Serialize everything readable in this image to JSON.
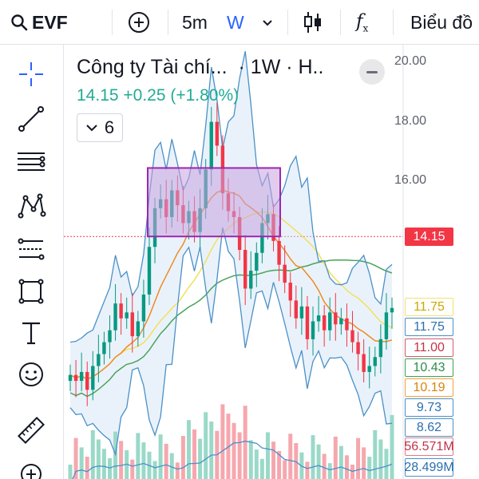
{
  "topbar": {
    "symbol": "EVF",
    "interval": "5m",
    "interval_active": "W",
    "chart_type_label": "Biểu đồ"
  },
  "legend": {
    "title": "Công ty Tài chí...",
    "meta": "· 1W · H..",
    "price_line": "14.15 +0.25 (+1.80%)",
    "indicator_count": "6"
  },
  "axis": {
    "ticks": [
      "20.00",
      "18.00",
      "16.00"
    ]
  },
  "price_tags": [
    {
      "text": "14.15",
      "value": 14.15,
      "bg": "#f23645",
      "border": "#f23645",
      "color": "#ffffff"
    },
    {
      "text": "11.75",
      "value": 11.75,
      "bg": "#ffffff",
      "border": "#f7e06a",
      "color": "#c9a800"
    },
    {
      "text": "11.75",
      "value": 11.75,
      "bg": "#ffffff",
      "border": "#4a90c8",
      "color": "#2a6fb0"
    },
    {
      "text": "11.00",
      "value": 11.0,
      "bg": "#ffffff",
      "border": "#d35a6a",
      "color": "#c2334a"
    },
    {
      "text": "10.43",
      "value": 10.43,
      "bg": "#ffffff",
      "border": "#3aa25a",
      "color": "#2e8b4a"
    },
    {
      "text": "10.19",
      "value": 10.19,
      "bg": "#ffffff",
      "border": "#f2a23a",
      "color": "#d8840c"
    },
    {
      "text": "9.73",
      "value": 9.73,
      "bg": "#ffffff",
      "border": "#4a90c8",
      "color": "#2a6fb0"
    },
    {
      "text": "8.62",
      "value": 8.62,
      "bg": "#ffffff",
      "border": "#4a90c8",
      "color": "#2a6fb0"
    },
    {
      "text": "56.571M",
      "value": 56.571,
      "bg": "#ffffff",
      "border": "#e07a86",
      "color": "#c2334a"
    },
    {
      "text": "28.499M",
      "value": 28.499,
      "bg": "#ffffff",
      "border": "#4a90c8",
      "color": "#2a6fb0"
    }
  ],
  "colors": {
    "up": "#089981",
    "down": "#f23645",
    "band": "#4a90c8",
    "band_fill": "#cfe3f5",
    "ma_orange": "#f08a24",
    "ma_yellow": "#f2e05a",
    "ma_green": "#4aa35a",
    "box_border": "#9c27b0",
    "box_fill": "#c8a2e0",
    "vol_up": "#9ad9c8",
    "vol_down": "#f6a7ae"
  },
  "icons": {
    "crosshair": "crosshair-icon",
    "trendline": "trend-line-icon",
    "fib": "fib-retracement-icon",
    "pattern": "pattern-icon",
    "prediction": "prediction-icon",
    "shapes": "rectangle-icon",
    "text": "text-icon",
    "emoji": "emoji-icon",
    "ruler": "ruler-icon",
    "zoom": "zoom-in-icon"
  }
}
